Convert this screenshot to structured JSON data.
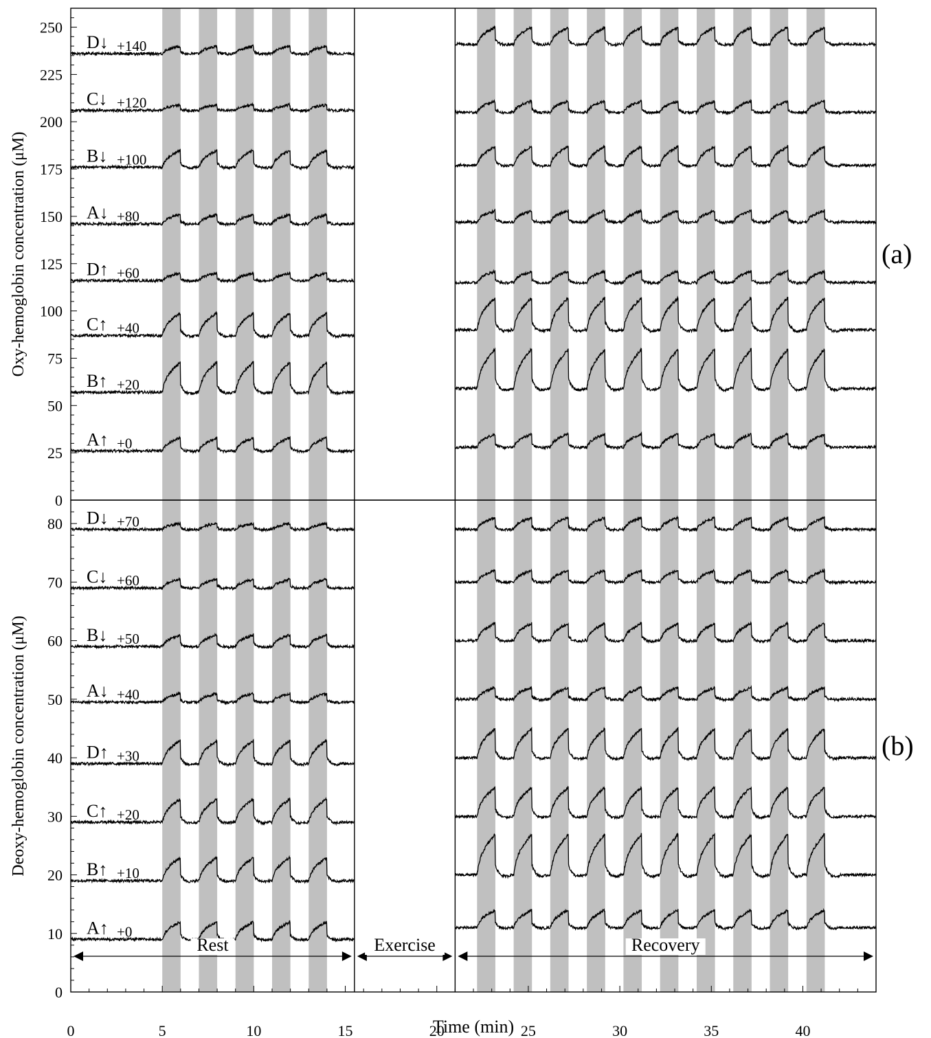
{
  "chart_data": [
    {
      "type": "line",
      "panel_label": "(a)",
      "ylabel": "Oxy-hemoglobin concentration (μM)",
      "ylim": [
        0,
        260
      ],
      "yticks": [
        0,
        25,
        50,
        75,
        100,
        125,
        150,
        175,
        200,
        225,
        250
      ],
      "xlim": [
        0,
        44
      ],
      "grid": false,
      "shaded_intervals": [
        [
          5,
          6
        ],
        [
          7,
          8
        ],
        [
          9,
          10
        ],
        [
          11,
          12
        ],
        [
          13,
          14
        ],
        [
          22.2,
          23.2
        ],
        [
          24.2,
          25.2
        ],
        [
          26.2,
          27.2
        ],
        [
          28.2,
          29.2
        ],
        [
          30.2,
          31.2
        ],
        [
          32.2,
          33.2
        ],
        [
          34.2,
          35.2
        ],
        [
          36.2,
          37.2
        ],
        [
          38.2,
          39.2
        ],
        [
          40.2,
          41.2
        ]
      ],
      "gap_interval": [
        15.5,
        21
      ],
      "series": [
        {
          "name": "A↑",
          "offset_label": "+0",
          "rest_baseline": 26,
          "rest_peak": 33,
          "recovery_baseline": 28,
          "recovery_peak": 35
        },
        {
          "name": "B↑",
          "offset_label": "+20",
          "rest_baseline": 57,
          "rest_peak": 73,
          "recovery_baseline": 59,
          "recovery_peak": 80
        },
        {
          "name": "C↑",
          "offset_label": "+40",
          "rest_baseline": 87,
          "rest_peak": 99,
          "recovery_baseline": 90,
          "recovery_peak": 107
        },
        {
          "name": "D↑",
          "offset_label": "+60",
          "rest_baseline": 116,
          "rest_peak": 120,
          "recovery_baseline": 115,
          "recovery_peak": 121
        },
        {
          "name": "A↓",
          "offset_label": "+80",
          "rest_baseline": 146,
          "rest_peak": 151,
          "recovery_baseline": 147,
          "recovery_peak": 153
        },
        {
          "name": "B↓",
          "offset_label": "+100",
          "rest_baseline": 176,
          "rest_peak": 185,
          "recovery_baseline": 177,
          "recovery_peak": 187
        },
        {
          "name": "C↓",
          "offset_label": "+120",
          "rest_baseline": 206,
          "rest_peak": 209,
          "recovery_baseline": 205,
          "recovery_peak": 211
        },
        {
          "name": "D↓",
          "offset_label": "+140",
          "rest_baseline": 236,
          "rest_peak": 240,
          "recovery_baseline": 241,
          "recovery_peak": 250
        }
      ]
    },
    {
      "type": "line",
      "panel_label": "(b)",
      "ylabel": "Deoxy-hemoglobin concentration (μM)",
      "xlabel": "Time (min)",
      "ylim": [
        0,
        84
      ],
      "yticks": [
        0,
        10,
        20,
        30,
        40,
        50,
        60,
        70,
        80
      ],
      "xlim": [
        0,
        44
      ],
      "xticks": [
        0,
        5,
        10,
        15,
        20,
        25,
        30,
        35,
        40
      ],
      "grid": false,
      "shaded_intervals": [
        [
          5,
          6
        ],
        [
          7,
          8
        ],
        [
          9,
          10
        ],
        [
          11,
          12
        ],
        [
          13,
          14
        ],
        [
          22.2,
          23.2
        ],
        [
          24.2,
          25.2
        ],
        [
          26.2,
          27.2
        ],
        [
          28.2,
          29.2
        ],
        [
          30.2,
          31.2
        ],
        [
          32.2,
          33.2
        ],
        [
          34.2,
          35.2
        ],
        [
          36.2,
          37.2
        ],
        [
          38.2,
          39.2
        ],
        [
          40.2,
          41.2
        ]
      ],
      "gap_interval": [
        15.5,
        21
      ],
      "phases": [
        {
          "label": "Rest",
          "range": [
            0,
            15.5
          ]
        },
        {
          "label": "Exercise",
          "range": [
            15.5,
            21
          ]
        },
        {
          "label": "Recovery",
          "range": [
            21,
            44
          ]
        }
      ],
      "series": [
        {
          "name": "A↑",
          "offset_label": "+0",
          "rest_baseline": 9,
          "rest_peak": 12,
          "recovery_baseline": 11,
          "recovery_peak": 14
        },
        {
          "name": "B↑",
          "offset_label": "+10",
          "rest_baseline": 19,
          "rest_peak": 23,
          "recovery_baseline": 20,
          "recovery_peak": 27
        },
        {
          "name": "C↑",
          "offset_label": "+20",
          "rest_baseline": 29,
          "rest_peak": 33,
          "recovery_baseline": 30,
          "recovery_peak": 35
        },
        {
          "name": "D↑",
          "offset_label": "+30",
          "rest_baseline": 39,
          "rest_peak": 43,
          "recovery_baseline": 40,
          "recovery_peak": 45
        },
        {
          "name": "A↓",
          "offset_label": "+40",
          "rest_baseline": 49.5,
          "rest_peak": 51,
          "recovery_baseline": 50,
          "recovery_peak": 52
        },
        {
          "name": "B↓",
          "offset_label": "+50",
          "rest_baseline": 59,
          "rest_peak": 61,
          "recovery_baseline": 60,
          "recovery_peak": 63
        },
        {
          "name": "C↓",
          "offset_label": "+60",
          "rest_baseline": 69,
          "rest_peak": 70.5,
          "recovery_baseline": 70,
          "recovery_peak": 72
        },
        {
          "name": "D↓",
          "offset_label": "+70",
          "rest_baseline": 79,
          "rest_peak": 80,
          "recovery_baseline": 79,
          "recovery_peak": 81
        }
      ]
    }
  ]
}
